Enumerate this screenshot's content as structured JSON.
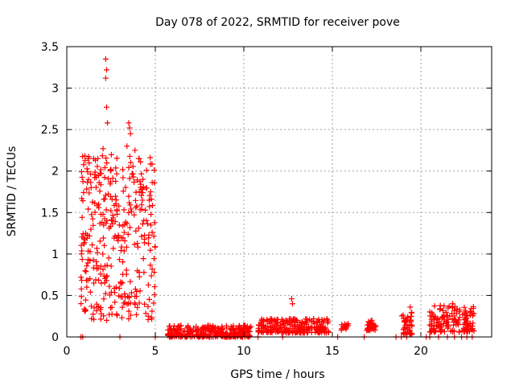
{
  "chart_data": {
    "type": "scatter",
    "title": "Day 078 of 2022, SRMTID for receiver pove",
    "xlabel": "GPS time / hours",
    "ylabel": "SRMTID / TECUs",
    "xlim": [
      0,
      24
    ],
    "ylim": [
      0,
      3.5
    ],
    "xticks": [
      0,
      5,
      10,
      15,
      20
    ],
    "yticks": [
      0,
      0.5,
      1,
      1.5,
      2,
      2.5,
      3,
      3.5
    ],
    "xtick_labels": [
      "0",
      "5",
      "10",
      "15",
      "20"
    ],
    "ytick_labels": [
      "0",
      "0.5",
      "1",
      "1.5",
      "2",
      "2.5",
      "3",
      "3.5"
    ],
    "grid": true,
    "marker": "+",
    "color": "#ff0000",
    "series": [
      {
        "name": "SRMTID",
        "clusters": [
          {
            "x_start": 0.8,
            "x_end": 5.0,
            "y_min": 0.2,
            "y_max": 2.2,
            "count": 360
          },
          {
            "x_start": 5.7,
            "x_end": 10.4,
            "y_min": 0.0,
            "y_max": 0.14,
            "count": 300
          },
          {
            "x_start": 10.8,
            "x_end": 14.8,
            "y_min": 0.05,
            "y_max": 0.22,
            "count": 240
          },
          {
            "x_start": 15.5,
            "x_end": 15.9,
            "y_min": 0.08,
            "y_max": 0.16,
            "count": 15
          },
          {
            "x_start": 16.9,
            "x_end": 17.5,
            "y_min": 0.08,
            "y_max": 0.22,
            "count": 30
          },
          {
            "x_start": 18.9,
            "x_end": 19.5,
            "y_min": 0.03,
            "y_max": 0.3,
            "count": 45
          },
          {
            "x_start": 20.5,
            "x_end": 23.0,
            "y_min": 0.06,
            "y_max": 0.38,
            "count": 150
          }
        ],
        "peaks": [
          {
            "x": 2.2,
            "y": 3.35
          },
          {
            "x": 2.25,
            "y": 3.22
          },
          {
            "x": 2.2,
            "y": 3.12
          },
          {
            "x": 2.25,
            "y": 2.77
          },
          {
            "x": 2.3,
            "y": 2.58
          },
          {
            "x": 3.5,
            "y": 2.58
          },
          {
            "x": 3.55,
            "y": 2.52
          },
          {
            "x": 3.6,
            "y": 2.45
          },
          {
            "x": 2.05,
            "y": 2.27
          },
          {
            "x": 3.4,
            "y": 2.3
          },
          {
            "x": 3.85,
            "y": 2.25
          },
          {
            "x": 1.75,
            "y": 2.15
          },
          {
            "x": 4.3,
            "y": 1.9
          },
          {
            "x": 4.1,
            "y": 1.75
          },
          {
            "x": 0.95,
            "y": 1.74
          },
          {
            "x": 12.7,
            "y": 0.46
          },
          {
            "x": 12.75,
            "y": 0.4
          },
          {
            "x": 21.8,
            "y": 0.4
          },
          {
            "x": 19.4,
            "y": 0.36
          },
          {
            "x": 1.4,
            "y": 0.22
          },
          {
            "x": 4.6,
            "y": 0.25
          }
        ],
        "zero_points": [
          0.8,
          0.9,
          3.0,
          5.0,
          5.8,
          10.8,
          12.2,
          15.3,
          16.8,
          18.6,
          18.9,
          19.2,
          20.3,
          20.5,
          21.0,
          21.5,
          21.9,
          22.3,
          22.6,
          22.9
        ]
      }
    ]
  }
}
